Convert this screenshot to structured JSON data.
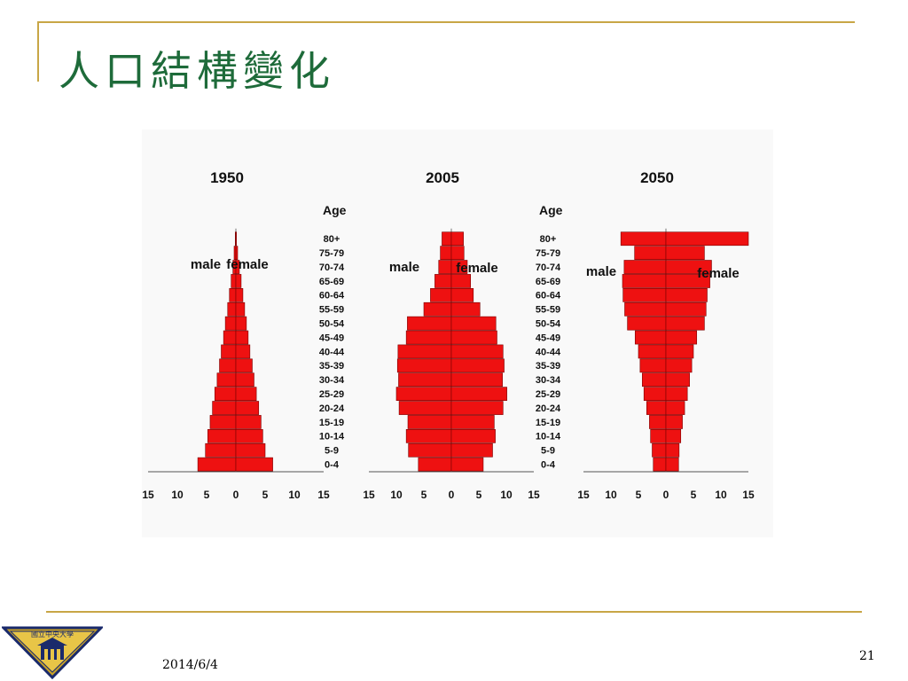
{
  "slide": {
    "title": "人口結構變化",
    "date": "2014/6/4",
    "page_number": "21"
  },
  "logo": {
    "text": "國立中央大學"
  },
  "colors": {
    "accent_line": "#c8a646",
    "title": "#1e6b3a",
    "bar_fill": "#ee1111",
    "bar_stroke": "#7a0000"
  },
  "chart_data": [
    {
      "type": "bar",
      "orientation": "horizontal-pyramid",
      "title": "1950",
      "male_label": "male",
      "female_label": "female",
      "age_label": "Age",
      "xlim": [
        -15,
        15
      ],
      "x_ticks": [
        "15",
        "10",
        "5",
        "0",
        "5",
        "10",
        "15"
      ],
      "categories": [
        "0-4",
        "5-9",
        "10-14",
        "15-19",
        "20-24",
        "25-29",
        "30-34",
        "35-39",
        "40-44",
        "45-49",
        "50-54",
        "55-59",
        "60-64",
        "65-69",
        "70-74",
        "75-79",
        "80+"
      ],
      "series": [
        {
          "name": "male",
          "values": [
            6.5,
            5.2,
            4.8,
            4.4,
            4.0,
            3.6,
            3.2,
            2.8,
            2.5,
            2.1,
            1.8,
            1.4,
            1.1,
            0.8,
            0.5,
            0.3,
            0.1
          ]
        },
        {
          "name": "female",
          "values": [
            6.3,
            5.0,
            4.6,
            4.3,
            3.9,
            3.5,
            3.1,
            2.8,
            2.4,
            2.1,
            1.8,
            1.5,
            1.2,
            0.9,
            0.6,
            0.3,
            0.1
          ]
        }
      ]
    },
    {
      "type": "bar",
      "orientation": "horizontal-pyramid",
      "title": "2005",
      "male_label": "male",
      "female_label": "female",
      "age_label": "",
      "xlim": [
        -15,
        15
      ],
      "x_ticks": [
        "15",
        "10",
        "5",
        "0",
        "5",
        "10",
        "15"
      ],
      "categories": [
        "0-4",
        "5-9",
        "10-14",
        "15-19",
        "20-24",
        "25-29",
        "30-34",
        "35-39",
        "40-44",
        "45-49",
        "50-54",
        "55-59",
        "60-64",
        "65-69",
        "70-74",
        "75-79",
        "80+"
      ],
      "series": [
        {
          "name": "male",
          "values": [
            6.0,
            7.8,
            8.2,
            7.9,
            9.5,
            10.0,
            9.6,
            9.8,
            9.7,
            8.2,
            8.0,
            5.0,
            3.8,
            3.0,
            2.3,
            2.0,
            1.7
          ]
        },
        {
          "name": "female",
          "values": [
            5.8,
            7.5,
            8.0,
            7.8,
            9.4,
            10.1,
            9.3,
            9.6,
            9.4,
            8.3,
            8.1,
            5.2,
            4.0,
            3.5,
            2.9,
            2.3,
            2.2
          ]
        }
      ]
    },
    {
      "type": "bar",
      "orientation": "horizontal-pyramid",
      "title": "2050",
      "male_label": "male",
      "female_label": "female",
      "age_label": "Age",
      "xlim": [
        -15,
        15
      ],
      "x_ticks": [
        "15",
        "10",
        "5",
        "0",
        "5",
        "10",
        "15"
      ],
      "categories": [
        "0-4",
        "5-9",
        "10-14",
        "15-19",
        "20-24",
        "25-29",
        "30-34",
        "35-39",
        "40-44",
        "45-49",
        "50-54",
        "55-59",
        "60-64",
        "65-69",
        "70-74",
        "75-79",
        "80+"
      ],
      "series": [
        {
          "name": "male",
          "values": [
            2.3,
            2.5,
            2.8,
            3.0,
            3.5,
            4.0,
            4.3,
            4.7,
            5.0,
            5.6,
            7.0,
            7.5,
            7.8,
            7.9,
            7.6,
            5.7,
            8.2
          ]
        },
        {
          "name": "female",
          "values": [
            2.3,
            2.4,
            2.7,
            3.0,
            3.4,
            3.9,
            4.3,
            4.7,
            5.0,
            5.6,
            7.0,
            7.3,
            7.5,
            8.0,
            8.3,
            7.0,
            15.0
          ]
        }
      ]
    }
  ]
}
